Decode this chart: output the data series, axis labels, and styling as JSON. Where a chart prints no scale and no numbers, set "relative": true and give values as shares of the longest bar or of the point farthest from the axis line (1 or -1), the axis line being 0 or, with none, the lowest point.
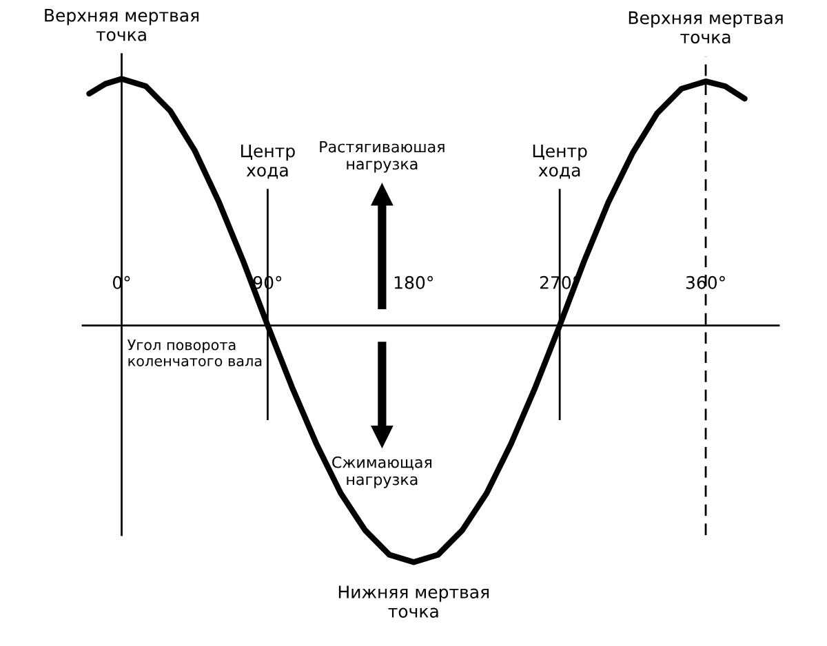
{
  "chart_data": {
    "type": "line",
    "relative": true,
    "xlabel": "Угол поворота\nколенчатого вала",
    "xlim": [
      -24,
      405
    ],
    "xticks": [
      {
        "value": 0,
        "label": "0°"
      },
      {
        "value": 90,
        "label": "90°"
      },
      {
        "value": 180,
        "label": "180°"
      },
      {
        "value": 270,
        "label": "270°"
      },
      {
        "value": 360,
        "label": "360°"
      }
    ],
    "series": [
      {
        "color": "#000000",
        "x": [
          -20,
          -10,
          0,
          15,
          30,
          45,
          60,
          75,
          90,
          105,
          120,
          135,
          150,
          165,
          180,
          195,
          210,
          225,
          240,
          255,
          270,
          285,
          300,
          315,
          330,
          345,
          360,
          372,
          384
        ],
        "values": [
          0.94,
          0.98,
          1,
          0.97,
          0.87,
          0.71,
          0.5,
          0.26,
          0,
          -0.25,
          -0.48,
          -0.68,
          -0.83,
          -0.93,
          -0.96,
          -0.93,
          -0.83,
          -0.68,
          -0.48,
          -0.25,
          0,
          0.26,
          0.5,
          0.7,
          0.86,
          0.96,
          0.99,
          0.97,
          0.92
        ]
      }
    ],
    "ref_lines": [
      {
        "axis": "x",
        "value": 0,
        "label": "Верхняя мертвая\nточка",
        "line_style": "solid"
      },
      {
        "axis": "x",
        "value": 90,
        "label": "Центр\nхода",
        "line_style": "solid"
      },
      {
        "axis": "x",
        "value": 270,
        "label": "Центр\nхода",
        "line_style": "solid"
      },
      {
        "axis": "x",
        "value": 360,
        "label": "Верхняя мертвая\nточка",
        "line_style": "dashed"
      }
    ],
    "annotations": [
      "Растягиваюшая\nнагрузка",
      "Сжимающая\nнагрузка",
      {
        "text": "Нижняя мертвая\nточка",
        "x": 180,
        "y": -0.96
      }
    ],
    "grid": false,
    "legend": false
  }
}
